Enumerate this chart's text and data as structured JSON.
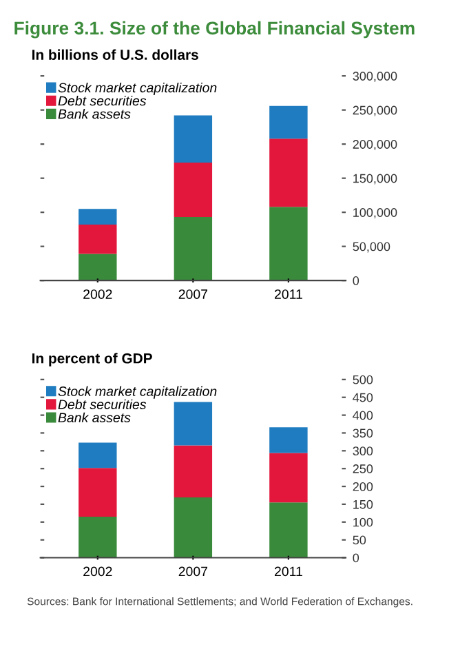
{
  "chart_data": [
    {
      "type": "bar",
      "title": "Figure 3.1. Size of the Global Financial System",
      "subtitle": "In billions of U.S. dollars",
      "categories": [
        "2002",
        "2007",
        "2011"
      ],
      "stacked": true,
      "legend": "top left",
      "grid": false,
      "series": [
        {
          "name": "Bank assets",
          "color": "#3a8a3c",
          "values": [
            39000,
            93000,
            108000
          ]
        },
        {
          "name": "Debt securities",
          "color": "#e2173b",
          "values": [
            43000,
            80000,
            100000
          ]
        },
        {
          "name": "Stock market capitalization",
          "color": "#1f7cc0",
          "values": [
            23000,
            69000,
            48000
          ]
        }
      ],
      "ylim": [
        0,
        300000
      ],
      "yticks": [
        {
          "value": 0,
          "label": "0"
        },
        {
          "value": 50000,
          "label": "50,000"
        },
        {
          "value": 100000,
          "label": "100,000"
        },
        {
          "value": 150000,
          "label": "150,000"
        },
        {
          "value": 200000,
          "label": "200,000"
        },
        {
          "value": 250000,
          "label": "250,000"
        },
        {
          "value": 300000,
          "label": "300,000"
        }
      ]
    },
    {
      "type": "bar",
      "subtitle": "In percent of GDP",
      "categories": [
        "2002",
        "2007",
        "2011"
      ],
      "stacked": true,
      "legend": "top left",
      "grid": false,
      "series": [
        {
          "name": "Bank assets",
          "color": "#3a8a3c",
          "values": [
            115,
            169,
            155
          ]
        },
        {
          "name": "Debt securities",
          "color": "#e2173b",
          "values": [
            137,
            146,
            139
          ]
        },
        {
          "name": "Stock market capitalization",
          "color": "#1f7cc0",
          "values": [
            71,
            122,
            72
          ]
        }
      ],
      "ylim": [
        0,
        500
      ],
      "yticks": [
        0,
        50,
        100,
        150,
        200,
        250,
        300,
        350,
        400,
        450,
        500
      ],
      "annotations": [
        "Sources: Bank for International Settlements; and World Federation of Exchanges."
      ]
    }
  ]
}
